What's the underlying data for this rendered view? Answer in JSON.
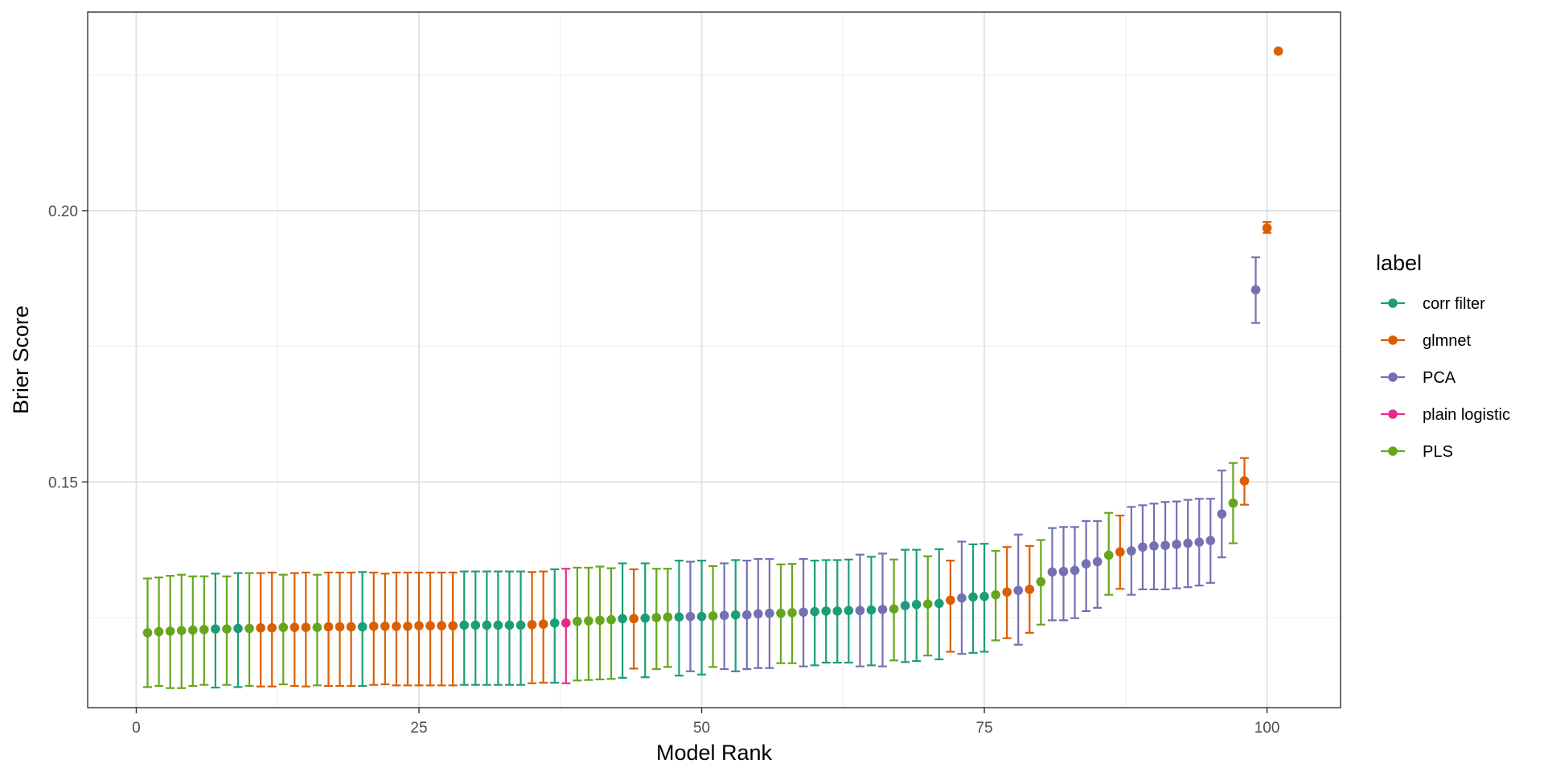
{
  "chart_data": {
    "type": "scatter",
    "subtype": "point-errorbar",
    "title": "",
    "xlabel": "Model Rank",
    "ylabel": "Brier Score",
    "xlim": [
      -4.3,
      106.5
    ],
    "ylim": [
      0.1084,
      0.2366
    ],
    "x_ticks": [
      0,
      25,
      50,
      75,
      100
    ],
    "x_tick_labels": [
      "0",
      "25",
      "50",
      "75",
      "100"
    ],
    "y_ticks": [
      0.15,
      0.2
    ],
    "y_tick_labels": [
      "0.15",
      "0.20"
    ],
    "grid": true,
    "legend": {
      "title": "label",
      "position": "right",
      "entries": [
        "corr filter",
        "glmnet",
        "PCA",
        "plain logistic",
        "PLS"
      ]
    },
    "colors": {
      "corr filter": "#1B9E77",
      "glmnet": "#D95F02",
      "PCA": "#7570B3",
      "plain logistic": "#E7298A",
      "PLS": "#66A61E"
    },
    "points": [
      {
        "rank": 1,
        "label": "PLS",
        "mean": 0.1222,
        "lower": 0.1122,
        "upper": 0.1322
      },
      {
        "rank": 2,
        "label": "PLS",
        "mean": 0.1224,
        "lower": 0.1124,
        "upper": 0.1324
      },
      {
        "rank": 3,
        "label": "PLS",
        "mean": 0.1225,
        "lower": 0.112,
        "upper": 0.1327
      },
      {
        "rank": 4,
        "label": "PLS",
        "mean": 0.1226,
        "lower": 0.112,
        "upper": 0.1329
      },
      {
        "rank": 5,
        "label": "PLS",
        "mean": 0.1227,
        "lower": 0.1124,
        "upper": 0.1326
      },
      {
        "rank": 6,
        "label": "PLS",
        "mean": 0.1228,
        "lower": 0.1126,
        "upper": 0.1326
      },
      {
        "rank": 7,
        "label": "corr filter",
        "mean": 0.1229,
        "lower": 0.1121,
        "upper": 0.1331
      },
      {
        "rank": 8,
        "label": "PLS",
        "mean": 0.1229,
        "lower": 0.1126,
        "upper": 0.1326
      },
      {
        "rank": 9,
        "label": "corr filter",
        "mean": 0.123,
        "lower": 0.1122,
        "upper": 0.1332
      },
      {
        "rank": 10,
        "label": "PLS",
        "mean": 0.123,
        "lower": 0.1124,
        "upper": 0.1332
      },
      {
        "rank": 11,
        "label": "glmnet",
        "mean": 0.1231,
        "lower": 0.1123,
        "upper": 0.1332
      },
      {
        "rank": 12,
        "label": "glmnet",
        "mean": 0.1231,
        "lower": 0.1123,
        "upper": 0.1333
      },
      {
        "rank": 13,
        "label": "PLS",
        "mean": 0.1232,
        "lower": 0.1127,
        "upper": 0.1329
      },
      {
        "rank": 14,
        "label": "glmnet",
        "mean": 0.1232,
        "lower": 0.1124,
        "upper": 0.1332
      },
      {
        "rank": 15,
        "label": "glmnet",
        "mean": 0.1232,
        "lower": 0.1123,
        "upper": 0.1333
      },
      {
        "rank": 16,
        "label": "PLS",
        "mean": 0.1232,
        "lower": 0.1125,
        "upper": 0.1329
      },
      {
        "rank": 17,
        "label": "glmnet",
        "mean": 0.1233,
        "lower": 0.1124,
        "upper": 0.1333
      },
      {
        "rank": 18,
        "label": "glmnet",
        "mean": 0.1233,
        "lower": 0.1124,
        "upper": 0.1333
      },
      {
        "rank": 19,
        "label": "glmnet",
        "mean": 0.1233,
        "lower": 0.1124,
        "upper": 0.1333
      },
      {
        "rank": 20,
        "label": "corr filter",
        "mean": 0.1233,
        "lower": 0.1124,
        "upper": 0.1334
      },
      {
        "rank": 21,
        "label": "glmnet",
        "mean": 0.1234,
        "lower": 0.1126,
        "upper": 0.1333
      },
      {
        "rank": 22,
        "label": "glmnet",
        "mean": 0.1234,
        "lower": 0.1127,
        "upper": 0.1331
      },
      {
        "rank": 23,
        "label": "glmnet",
        "mean": 0.1234,
        "lower": 0.1125,
        "upper": 0.1333
      },
      {
        "rank": 24,
        "label": "glmnet",
        "mean": 0.1234,
        "lower": 0.1125,
        "upper": 0.1333
      },
      {
        "rank": 25,
        "label": "glmnet",
        "mean": 0.1235,
        "lower": 0.1125,
        "upper": 0.1333
      },
      {
        "rank": 26,
        "label": "glmnet",
        "mean": 0.1235,
        "lower": 0.1125,
        "upper": 0.1333
      },
      {
        "rank": 27,
        "label": "glmnet",
        "mean": 0.1235,
        "lower": 0.1125,
        "upper": 0.1333
      },
      {
        "rank": 28,
        "label": "glmnet",
        "mean": 0.1235,
        "lower": 0.1125,
        "upper": 0.1333
      },
      {
        "rank": 29,
        "label": "corr filter",
        "mean": 0.1236,
        "lower": 0.1126,
        "upper": 0.1335
      },
      {
        "rank": 30,
        "label": "corr filter",
        "mean": 0.1236,
        "lower": 0.1126,
        "upper": 0.1335
      },
      {
        "rank": 31,
        "label": "corr filter",
        "mean": 0.1236,
        "lower": 0.1126,
        "upper": 0.1335
      },
      {
        "rank": 32,
        "label": "corr filter",
        "mean": 0.1236,
        "lower": 0.1126,
        "upper": 0.1335
      },
      {
        "rank": 33,
        "label": "corr filter",
        "mean": 0.1236,
        "lower": 0.1126,
        "upper": 0.1335
      },
      {
        "rank": 34,
        "label": "corr filter",
        "mean": 0.1236,
        "lower": 0.1126,
        "upper": 0.1335
      },
      {
        "rank": 35,
        "label": "glmnet",
        "mean": 0.1237,
        "lower": 0.1129,
        "upper": 0.1334
      },
      {
        "rank": 36,
        "label": "glmnet",
        "mean": 0.1238,
        "lower": 0.113,
        "upper": 0.1335
      },
      {
        "rank": 37,
        "label": "corr filter",
        "mean": 0.124,
        "lower": 0.113,
        "upper": 0.1339
      },
      {
        "rank": 38,
        "label": "plain logistic",
        "mean": 0.124,
        "lower": 0.1129,
        "upper": 0.134
      },
      {
        "rank": 39,
        "label": "PLS",
        "mean": 0.1243,
        "lower": 0.1134,
        "upper": 0.1342
      },
      {
        "rank": 40,
        "label": "PLS",
        "mean": 0.1244,
        "lower": 0.1135,
        "upper": 0.1342
      },
      {
        "rank": 41,
        "label": "PLS",
        "mean": 0.1245,
        "lower": 0.1136,
        "upper": 0.1344
      },
      {
        "rank": 42,
        "label": "PLS",
        "mean": 0.1246,
        "lower": 0.1137,
        "upper": 0.1341
      },
      {
        "rank": 43,
        "label": "corr filter",
        "mean": 0.1248,
        "lower": 0.1139,
        "upper": 0.135
      },
      {
        "rank": 44,
        "label": "glmnet",
        "mean": 0.1248,
        "lower": 0.1156,
        "upper": 0.1339
      },
      {
        "rank": 45,
        "label": "corr filter",
        "mean": 0.1249,
        "lower": 0.114,
        "upper": 0.135
      },
      {
        "rank": 46,
        "label": "PLS",
        "mean": 0.125,
        "lower": 0.1155,
        "upper": 0.134
      },
      {
        "rank": 47,
        "label": "PLS",
        "mean": 0.1251,
        "lower": 0.1159,
        "upper": 0.134
      },
      {
        "rank": 48,
        "label": "corr filter",
        "mean": 0.1251,
        "lower": 0.1143,
        "upper": 0.1355
      },
      {
        "rank": 49,
        "label": "PCA",
        "mean": 0.1252,
        "lower": 0.1151,
        "upper": 0.1353
      },
      {
        "rank": 50,
        "label": "corr filter",
        "mean": 0.1252,
        "lower": 0.1145,
        "upper": 0.1355
      },
      {
        "rank": 51,
        "label": "PLS",
        "mean": 0.1253,
        "lower": 0.1159,
        "upper": 0.1345
      },
      {
        "rank": 52,
        "label": "PCA",
        "mean": 0.1254,
        "lower": 0.1155,
        "upper": 0.135
      },
      {
        "rank": 53,
        "label": "corr filter",
        "mean": 0.1255,
        "lower": 0.1151,
        "upper": 0.1356
      },
      {
        "rank": 54,
        "label": "PCA",
        "mean": 0.1255,
        "lower": 0.1155,
        "upper": 0.1355
      },
      {
        "rank": 55,
        "label": "PCA",
        "mean": 0.1257,
        "lower": 0.1157,
        "upper": 0.1358
      },
      {
        "rank": 56,
        "label": "PCA",
        "mean": 0.1258,
        "lower": 0.1157,
        "upper": 0.1358
      },
      {
        "rank": 57,
        "label": "PLS",
        "mean": 0.1258,
        "lower": 0.1166,
        "upper": 0.1348
      },
      {
        "rank": 58,
        "label": "PLS",
        "mean": 0.1259,
        "lower": 0.1166,
        "upper": 0.1349
      },
      {
        "rank": 59,
        "label": "PCA",
        "mean": 0.126,
        "lower": 0.116,
        "upper": 0.1358
      },
      {
        "rank": 60,
        "label": "corr filter",
        "mean": 0.1261,
        "lower": 0.1162,
        "upper": 0.1355
      },
      {
        "rank": 61,
        "label": "corr filter",
        "mean": 0.1262,
        "lower": 0.1167,
        "upper": 0.1356
      },
      {
        "rank": 62,
        "label": "corr filter",
        "mean": 0.1262,
        "lower": 0.1167,
        "upper": 0.1356
      },
      {
        "rank": 63,
        "label": "corr filter",
        "mean": 0.1263,
        "lower": 0.1167,
        "upper": 0.1357
      },
      {
        "rank": 64,
        "label": "PCA",
        "mean": 0.1263,
        "lower": 0.116,
        "upper": 0.1366
      },
      {
        "rank": 65,
        "label": "corr filter",
        "mean": 0.1264,
        "lower": 0.1162,
        "upper": 0.1362
      },
      {
        "rank": 66,
        "label": "PCA",
        "mean": 0.1265,
        "lower": 0.116,
        "upper": 0.1368
      },
      {
        "rank": 67,
        "label": "PLS",
        "mean": 0.1266,
        "lower": 0.1171,
        "upper": 0.1357
      },
      {
        "rank": 68,
        "label": "corr filter",
        "mean": 0.1272,
        "lower": 0.1168,
        "upper": 0.1375
      },
      {
        "rank": 69,
        "label": "corr filter",
        "mean": 0.1274,
        "lower": 0.117,
        "upper": 0.1375
      },
      {
        "rank": 70,
        "label": "PLS",
        "mean": 0.1275,
        "lower": 0.118,
        "upper": 0.1363
      },
      {
        "rank": 71,
        "label": "corr filter",
        "mean": 0.1276,
        "lower": 0.1173,
        "upper": 0.1376
      },
      {
        "rank": 72,
        "label": "glmnet",
        "mean": 0.1282,
        "lower": 0.1187,
        "upper": 0.1355
      },
      {
        "rank": 73,
        "label": "PCA",
        "mean": 0.1286,
        "lower": 0.1183,
        "upper": 0.139
      },
      {
        "rank": 74,
        "label": "corr filter",
        "mean": 0.1288,
        "lower": 0.1185,
        "upper": 0.1385
      },
      {
        "rank": 75,
        "label": "corr filter",
        "mean": 0.1289,
        "lower": 0.1187,
        "upper": 0.1386
      },
      {
        "rank": 76,
        "label": "PLS",
        "mean": 0.1292,
        "lower": 0.1208,
        "upper": 0.1373
      },
      {
        "rank": 77,
        "label": "glmnet",
        "mean": 0.1297,
        "lower": 0.1212,
        "upper": 0.138
      },
      {
        "rank": 78,
        "label": "PCA",
        "mean": 0.13,
        "lower": 0.12,
        "upper": 0.1403
      },
      {
        "rank": 79,
        "label": "glmnet",
        "mean": 0.1302,
        "lower": 0.1222,
        "upper": 0.1382
      },
      {
        "rank": 80,
        "label": "PLS",
        "mean": 0.1316,
        "lower": 0.1237,
        "upper": 0.1393
      },
      {
        "rank": 81,
        "label": "PCA",
        "mean": 0.1334,
        "lower": 0.1245,
        "upper": 0.1415
      },
      {
        "rank": 82,
        "label": "PCA",
        "mean": 0.1335,
        "lower": 0.1245,
        "upper": 0.1417
      },
      {
        "rank": 83,
        "label": "PCA",
        "mean": 0.1337,
        "lower": 0.1249,
        "upper": 0.1417
      },
      {
        "rank": 84,
        "label": "PCA",
        "mean": 0.1349,
        "lower": 0.1262,
        "upper": 0.1428
      },
      {
        "rank": 85,
        "label": "PCA",
        "mean": 0.1353,
        "lower": 0.1268,
        "upper": 0.1428
      },
      {
        "rank": 86,
        "label": "PLS",
        "mean": 0.1365,
        "lower": 0.1292,
        "upper": 0.1443
      },
      {
        "rank": 87,
        "label": "glmnet",
        "mean": 0.1371,
        "lower": 0.1303,
        "upper": 0.1438
      },
      {
        "rank": 88,
        "label": "PCA",
        "mean": 0.1373,
        "lower": 0.1292,
        "upper": 0.1454
      },
      {
        "rank": 89,
        "label": "PCA",
        "mean": 0.138,
        "lower": 0.1302,
        "upper": 0.1457
      },
      {
        "rank": 90,
        "label": "PCA",
        "mean": 0.1382,
        "lower": 0.1302,
        "upper": 0.146
      },
      {
        "rank": 91,
        "label": "PCA",
        "mean": 0.1383,
        "lower": 0.1302,
        "upper": 0.1463
      },
      {
        "rank": 92,
        "label": "PCA",
        "mean": 0.1385,
        "lower": 0.1304,
        "upper": 0.1464
      },
      {
        "rank": 93,
        "label": "PCA",
        "mean": 0.1387,
        "lower": 0.1306,
        "upper": 0.1467
      },
      {
        "rank": 94,
        "label": "PCA",
        "mean": 0.1389,
        "lower": 0.1309,
        "upper": 0.1469
      },
      {
        "rank": 95,
        "label": "PCA",
        "mean": 0.1392,
        "lower": 0.1314,
        "upper": 0.1469
      },
      {
        "rank": 96,
        "label": "PCA",
        "mean": 0.1441,
        "lower": 0.1361,
        "upper": 0.1521
      },
      {
        "rank": 97,
        "label": "PLS",
        "mean": 0.1461,
        "lower": 0.1387,
        "upper": 0.1535
      },
      {
        "rank": 98,
        "label": "glmnet",
        "mean": 0.1502,
        "lower": 0.1458,
        "upper": 0.1544
      },
      {
        "rank": 99,
        "label": "PCA",
        "mean": 0.1854,
        "lower": 0.1793,
        "upper": 0.1914
      },
      {
        "rank": 100,
        "label": "glmnet",
        "mean": 0.1968,
        "lower": 0.1959,
        "upper": 0.1979
      },
      {
        "rank": 101,
        "label": "glmnet",
        "mean": 0.2294,
        "lower": null,
        "upper": null
      }
    ]
  }
}
